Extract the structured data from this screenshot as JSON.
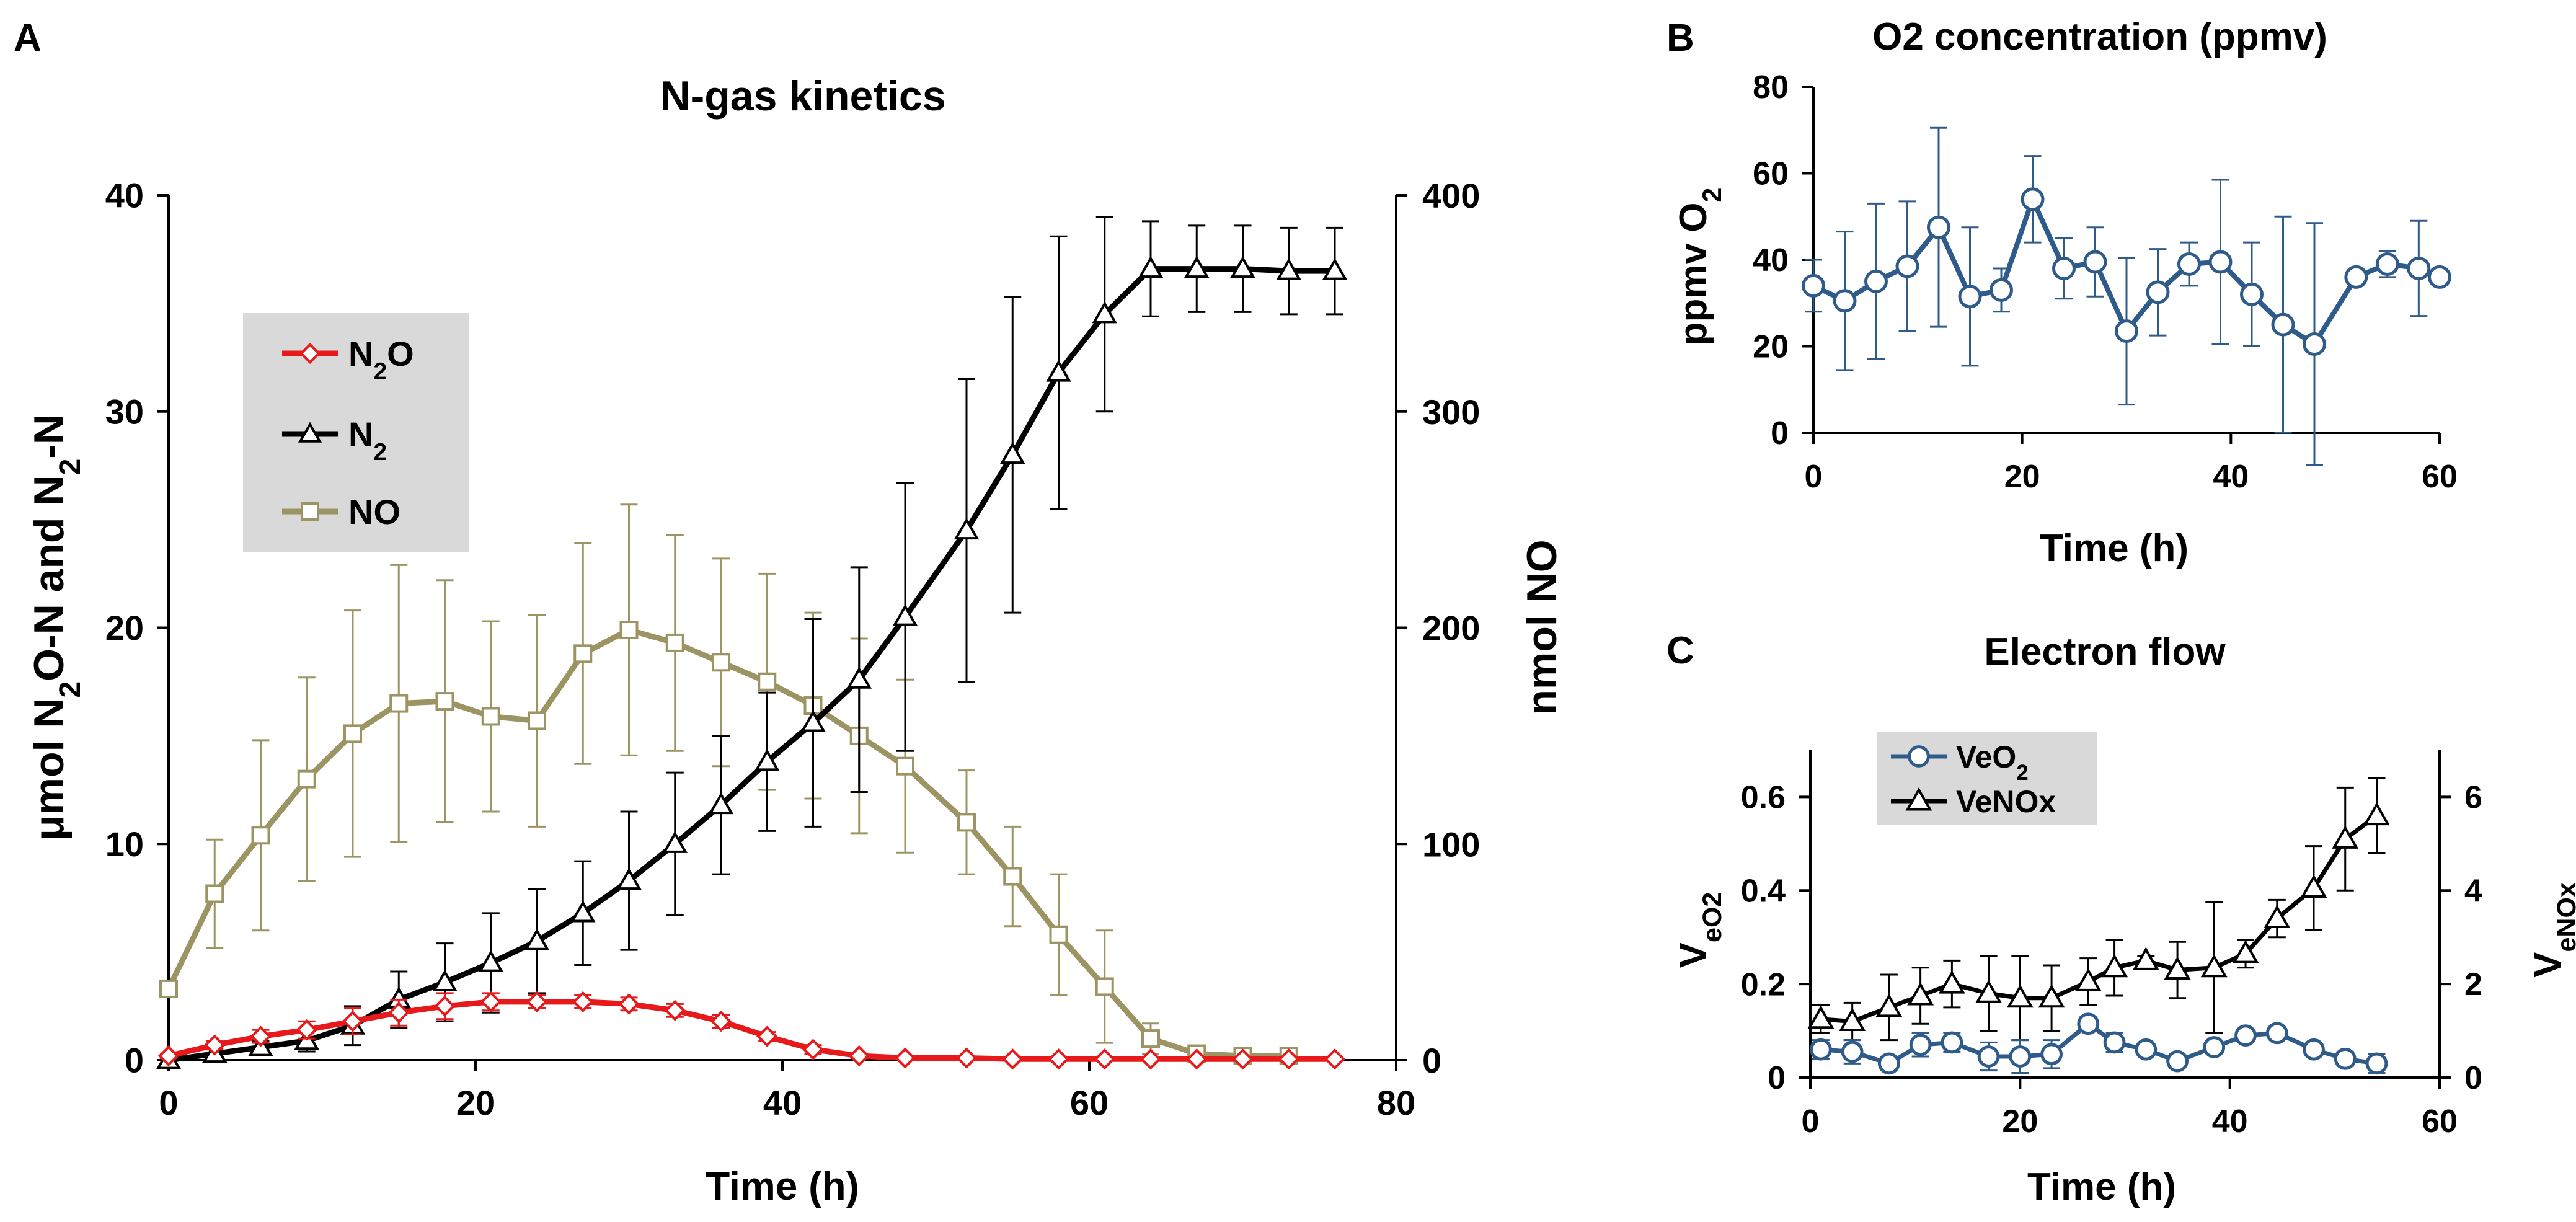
{
  "figure": {
    "panel_letters": [
      "A",
      "B",
      "C"
    ]
  },
  "colors": {
    "n2o": "#e8191b",
    "n2": "#000000",
    "no": "#9c9462",
    "o2": "#2f5b8a",
    "legend_bg": "#d9d9d9"
  },
  "chart_data": [
    {
      "id": "A",
      "type": "line",
      "title": "N-gas kinetics",
      "xlabel": "Time (h)",
      "ylabel_left": "μmol N2O-N and N2-N",
      "ylabel_right": "nmol NO",
      "xlim": [
        0,
        80
      ],
      "ylim_left": [
        0,
        40
      ],
      "ylim_right": [
        0,
        400
      ],
      "x_ticks": [
        "0",
        "20",
        "40",
        "60",
        "80"
      ],
      "y_ticks_left": [
        "0",
        "10",
        "20",
        "30",
        "40"
      ],
      "y_ticks_right": [
        "0",
        "100",
        "200",
        "300",
        "400"
      ],
      "legend": {
        "position": "upper-left",
        "entries": [
          "N2O",
          "N2",
          "NO"
        ]
      },
      "series": [
        {
          "name": "N2O",
          "axis": "left",
          "marker": "diamond",
          "color_key": "n2o",
          "x": [
            0,
            3,
            6,
            9,
            12,
            15,
            18,
            21,
            24,
            27,
            30,
            33,
            36,
            39,
            42,
            45,
            48,
            52,
            55,
            58,
            61,
            64,
            67,
            70,
            73,
            76
          ],
          "y": [
            0.2,
            0.7,
            1.1,
            1.4,
            1.8,
            2.2,
            2.5,
            2.7,
            2.7,
            2.7,
            2.6,
            2.3,
            1.8,
            1.1,
            0.5,
            0.2,
            0.1,
            0.1,
            0.05,
            0.05,
            0.05,
            0.05,
            0.05,
            0.05,
            0.05,
            0.05
          ],
          "err": [
            0.1,
            0.2,
            0.3,
            0.4,
            0.6,
            0.6,
            0.6,
            0.4,
            0.3,
            0.3,
            0.3,
            0.3,
            0.3,
            0.2,
            0.2,
            0.1,
            0,
            0,
            0,
            0,
            0,
            0,
            0,
            0,
            0,
            0
          ]
        },
        {
          "name": "N2",
          "axis": "left",
          "marker": "triangle",
          "color_key": "n2",
          "x": [
            0,
            3,
            6,
            9,
            12,
            15,
            18,
            21,
            24,
            27,
            30,
            33,
            36,
            39,
            42,
            45,
            48,
            52,
            55,
            58,
            61,
            64,
            67,
            70,
            73,
            76
          ],
          "y": [
            0,
            0.3,
            0.6,
            0.9,
            1.6,
            2.8,
            3.6,
            4.5,
            5.5,
            6.8,
            8.3,
            10,
            11.8,
            13.8,
            15.6,
            17.6,
            20.5,
            24.5,
            28,
            31.8,
            34.5,
            36.6,
            36.6,
            36.6,
            36.5,
            36.5
          ],
          "err": [
            0,
            0.2,
            0.3,
            0.5,
            0.9,
            1.3,
            1.8,
            2.3,
            2.4,
            2.4,
            3.2,
            3.3,
            3.2,
            3.2,
            4.8,
            5.2,
            6.2,
            7,
            7.3,
            6.3,
            4.5,
            2.2,
            2,
            2,
            2,
            2
          ]
        },
        {
          "name": "NO",
          "axis": "right",
          "marker": "square",
          "color_key": "no",
          "x": [
            0,
            3,
            6,
            9,
            12,
            15,
            18,
            21,
            24,
            27,
            30,
            33,
            36,
            39,
            42,
            45,
            48,
            52,
            55,
            58,
            61,
            64,
            67,
            70,
            73
          ],
          "y": [
            33,
            77,
            104,
            130,
            151,
            165,
            166,
            159,
            157,
            188,
            199,
            193,
            184,
            175,
            164,
            150,
            136,
            110,
            85,
            58,
            34,
            10,
            3,
            2,
            2
          ],
          "err": [
            0,
            25,
            44,
            47,
            57,
            64,
            56,
            44,
            49,
            51,
            58,
            50,
            48,
            50,
            43,
            45,
            40,
            24,
            23,
            28,
            26,
            7,
            2,
            2,
            2
          ]
        }
      ]
    },
    {
      "id": "B",
      "type": "line",
      "title": "O2 concentration (ppmv)",
      "xlabel": "Time (h)",
      "ylabel": "ppmv O2",
      "xlim": [
        0,
        60
      ],
      "ylim": [
        0,
        80
      ],
      "x_ticks": [
        "0",
        "20",
        "40",
        "60"
      ],
      "y_ticks": [
        "0",
        "20",
        "40",
        "60",
        "80"
      ],
      "series": [
        {
          "name": "O2",
          "marker": "circle",
          "color_key": "o2",
          "x": [
            0,
            3,
            6,
            9,
            12,
            15,
            18,
            21,
            24,
            27,
            30,
            33,
            36,
            39,
            42,
            45,
            48,
            52,
            55,
            58,
            60
          ],
          "y": [
            34,
            30.5,
            35,
            38.5,
            47.5,
            31.5,
            33,
            54,
            38,
            39.5,
            23.5,
            32.5,
            39,
            39.5,
            32,
            25,
            20.5,
            36,
            39,
            38,
            36
          ],
          "err": [
            6,
            16,
            18,
            15,
            23,
            16,
            5,
            10,
            7,
            8,
            17,
            10,
            5,
            19,
            12,
            25,
            28,
            0,
            3,
            11,
            0
          ]
        }
      ]
    },
    {
      "id": "C",
      "type": "line",
      "title": "Electron flow",
      "xlabel": "Time (h)",
      "ylabel_left": "VeO2",
      "ylabel_right": "VeNOx",
      "xlim": [
        0,
        60
      ],
      "ylim_left": [
        0,
        0.7
      ],
      "ylim_right": [
        0,
        7
      ],
      "x_ticks": [
        "0",
        "20",
        "40",
        "60"
      ],
      "y_ticks_left": [
        "0",
        "0.2",
        "0.4",
        "0.6"
      ],
      "y_ticks_right": [
        "0",
        "2",
        "4",
        "6"
      ],
      "legend": {
        "position": "upper-left",
        "entries": [
          "VeO2",
          "VeNOx"
        ]
      },
      "series": [
        {
          "name": "VeO2",
          "axis": "left",
          "marker": "circle",
          "color_key": "o2",
          "x": [
            1,
            4,
            7.5,
            10.5,
            13.5,
            17,
            20,
            23,
            26.5,
            29,
            32,
            35,
            38.5,
            41.5,
            44.5,
            48,
            51,
            54
          ],
          "y": [
            0.06,
            0.055,
            0.03,
            0.07,
            0.075,
            0.045,
            0.045,
            0.05,
            0.115,
            0.075,
            0.06,
            0.035,
            0.065,
            0.09,
            0.095,
            0.06,
            0.04,
            0.03
          ],
          "err": [
            0.02,
            0.025,
            0.01,
            0.025,
            0.02,
            0.03,
            0.035,
            0.03,
            0.015,
            0.02,
            0.01,
            0.01,
            0.01,
            0.01,
            0.01,
            0.01,
            0.015,
            0.02
          ]
        },
        {
          "name": "VeNOx",
          "axis": "right",
          "marker": "triangle",
          "color_key": "n2",
          "x": [
            1,
            4,
            7.5,
            10.5,
            13.5,
            17,
            20,
            23,
            26.5,
            29,
            32,
            35,
            38.5,
            41.5,
            44.5,
            48,
            51,
            54
          ],
          "y": [
            1.25,
            1.2,
            1.5,
            1.75,
            2,
            1.8,
            1.7,
            1.7,
            2.05,
            2.35,
            2.5,
            2.3,
            2.35,
            2.65,
            3.4,
            4.05,
            5.1,
            5.6
          ],
          "err": [
            0.3,
            0.4,
            0.7,
            0.6,
            0.5,
            0.8,
            0.9,
            0.7,
            0.5,
            0.6,
            0.1,
            0.6,
            1.4,
            0.3,
            0.4,
            0.9,
            1.1,
            0.8
          ]
        }
      ]
    }
  ]
}
